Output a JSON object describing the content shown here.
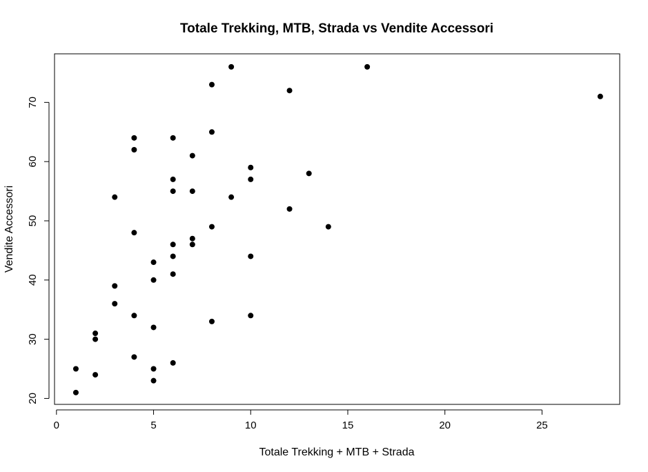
{
  "chart_data": {
    "type": "scatter",
    "title": "Totale Trekking, MTB, Strada vs Vendite Accessori",
    "xlabel": "Totale Trekking + MTB + Strada",
    "ylabel": "Vendite Accessori",
    "xlim": [
      -0.1,
      29.0
    ],
    "ylim": [
      19.0,
      78.2
    ],
    "xticks": [
      0,
      5,
      10,
      15,
      20,
      25
    ],
    "yticks": [
      20,
      30,
      40,
      50,
      60,
      70
    ],
    "grid": false,
    "legend": "none",
    "point_color": "#000000",
    "points": [
      {
        "x": 1,
        "y": 21
      },
      {
        "x": 1,
        "y": 25
      },
      {
        "x": 2,
        "y": 24
      },
      {
        "x": 2,
        "y": 30
      },
      {
        "x": 2,
        "y": 31
      },
      {
        "x": 3,
        "y": 36
      },
      {
        "x": 3,
        "y": 39
      },
      {
        "x": 3,
        "y": 54
      },
      {
        "x": 4,
        "y": 27
      },
      {
        "x": 4,
        "y": 34
      },
      {
        "x": 4,
        "y": 48
      },
      {
        "x": 4,
        "y": 62
      },
      {
        "x": 4,
        "y": 64
      },
      {
        "x": 5,
        "y": 23
      },
      {
        "x": 5,
        "y": 25
      },
      {
        "x": 5,
        "y": 32
      },
      {
        "x": 5,
        "y": 40
      },
      {
        "x": 5,
        "y": 43
      },
      {
        "x": 6,
        "y": 26
      },
      {
        "x": 6,
        "y": 41
      },
      {
        "x": 6,
        "y": 44
      },
      {
        "x": 6,
        "y": 46
      },
      {
        "x": 6,
        "y": 55
      },
      {
        "x": 6,
        "y": 57
      },
      {
        "x": 6,
        "y": 64
      },
      {
        "x": 7,
        "y": 46
      },
      {
        "x": 7,
        "y": 47
      },
      {
        "x": 7,
        "y": 55
      },
      {
        "x": 7,
        "y": 61
      },
      {
        "x": 8,
        "y": 33
      },
      {
        "x": 8,
        "y": 49
      },
      {
        "x": 8,
        "y": 65
      },
      {
        "x": 8,
        "y": 73
      },
      {
        "x": 9,
        "y": 54
      },
      {
        "x": 9,
        "y": 76
      },
      {
        "x": 10,
        "y": 34
      },
      {
        "x": 10,
        "y": 44
      },
      {
        "x": 10,
        "y": 57
      },
      {
        "x": 10,
        "y": 59
      },
      {
        "x": 12,
        "y": 52
      },
      {
        "x": 12,
        "y": 72
      },
      {
        "x": 13,
        "y": 58
      },
      {
        "x": 14,
        "y": 49
      },
      {
        "x": 16,
        "y": 76
      },
      {
        "x": 28,
        "y": 71
      }
    ]
  }
}
